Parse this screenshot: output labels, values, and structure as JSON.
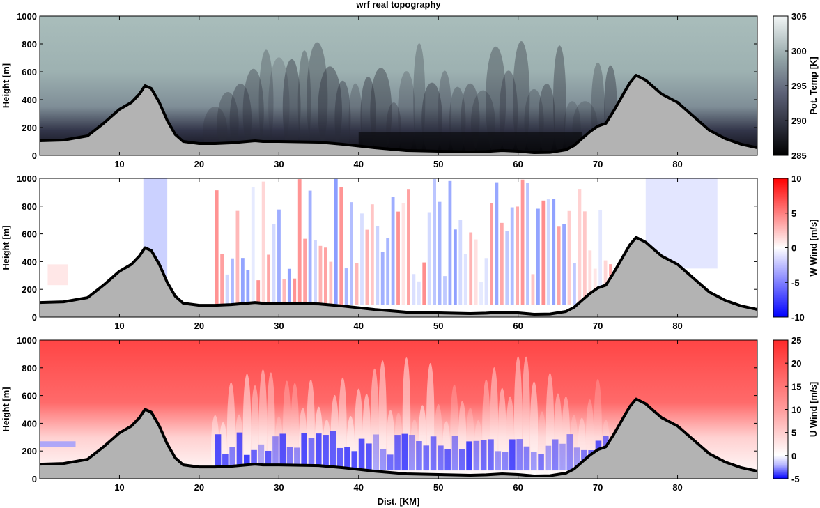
{
  "figure": {
    "title": "wrf real topography",
    "xlabel": "Dist. [KM]"
  },
  "chart_data": [
    {
      "type": "heatmap",
      "title": "wrf real topography",
      "ylabel": "Height [m]",
      "xlabel": "",
      "xlim": [
        0,
        90
      ],
      "ylim": [
        0,
        1000
      ],
      "xticks": [
        10,
        20,
        30,
        40,
        50,
        60,
        70,
        80
      ],
      "yticks": [
        0,
        200,
        400,
        600,
        800,
        1000
      ],
      "colorbar": {
        "label": "Pot. Temp [K]",
        "range": [
          285,
          305
        ],
        "ticks": [
          285,
          290,
          295,
          300,
          305
        ]
      },
      "colors": {
        "low": "#000000",
        "mid": "#5d6278",
        "high": "#f2f6f6"
      }
    },
    {
      "type": "heatmap",
      "ylabel": "Height [m]",
      "xlabel": "",
      "xlim": [
        0,
        90
      ],
      "ylim": [
        0,
        1000
      ],
      "xticks": [
        10,
        20,
        30,
        40,
        50,
        60,
        70,
        80
      ],
      "yticks": [
        0,
        200,
        400,
        600,
        800,
        1000
      ],
      "colorbar": {
        "label": "W Wind [m/s]",
        "range": [
          -10,
          10
        ],
        "ticks": [
          -10,
          -5,
          0,
          5,
          10
        ]
      },
      "colors": {
        "negative": "#0000ff",
        "zero": "#ffffff",
        "positive": "#ff0000"
      }
    },
    {
      "type": "heatmap",
      "ylabel": "Height [m]",
      "xlabel": "Dist. [KM]",
      "xlim": [
        0,
        90
      ],
      "ylim": [
        0,
        1000
      ],
      "xticks": [
        10,
        20,
        30,
        40,
        50,
        60,
        70,
        80
      ],
      "yticks": [
        0,
        200,
        400,
        600,
        800,
        1000
      ],
      "colorbar": {
        "label": "U Wind [m/s]",
        "range": [
          -5,
          25
        ],
        "ticks": [
          -5,
          0,
          5,
          10,
          15,
          20,
          25
        ]
      },
      "colors": {
        "negative": "#0000ff",
        "zero": "#ffffff",
        "positive": "#ff3b3b"
      }
    }
  ],
  "terrain": {
    "x": [
      0,
      3,
      6,
      8,
      10,
      11.5,
      12.5,
      13.2,
      14,
      15,
      16,
      17,
      18,
      20,
      22,
      24,
      26,
      27,
      28,
      30,
      35,
      38,
      42,
      46,
      50,
      54,
      56,
      58,
      60,
      62,
      64,
      66,
      67,
      68,
      69,
      70,
      71,
      72,
      73,
      74,
      74.8,
      76,
      77,
      78,
      80,
      82,
      84,
      86,
      88,
      90
    ],
    "height": [
      105,
      110,
      140,
      230,
      330,
      380,
      440,
      500,
      480,
      380,
      250,
      150,
      100,
      85,
      85,
      90,
      100,
      105,
      100,
      100,
      95,
      80,
      55,
      35,
      30,
      25,
      28,
      35,
      30,
      20,
      22,
      40,
      70,
      120,
      170,
      210,
      230,
      320,
      420,
      520,
      575,
      540,
      490,
      440,
      380,
      280,
      180,
      120,
      80,
      55
    ],
    "color": "#b3b3b3"
  }
}
